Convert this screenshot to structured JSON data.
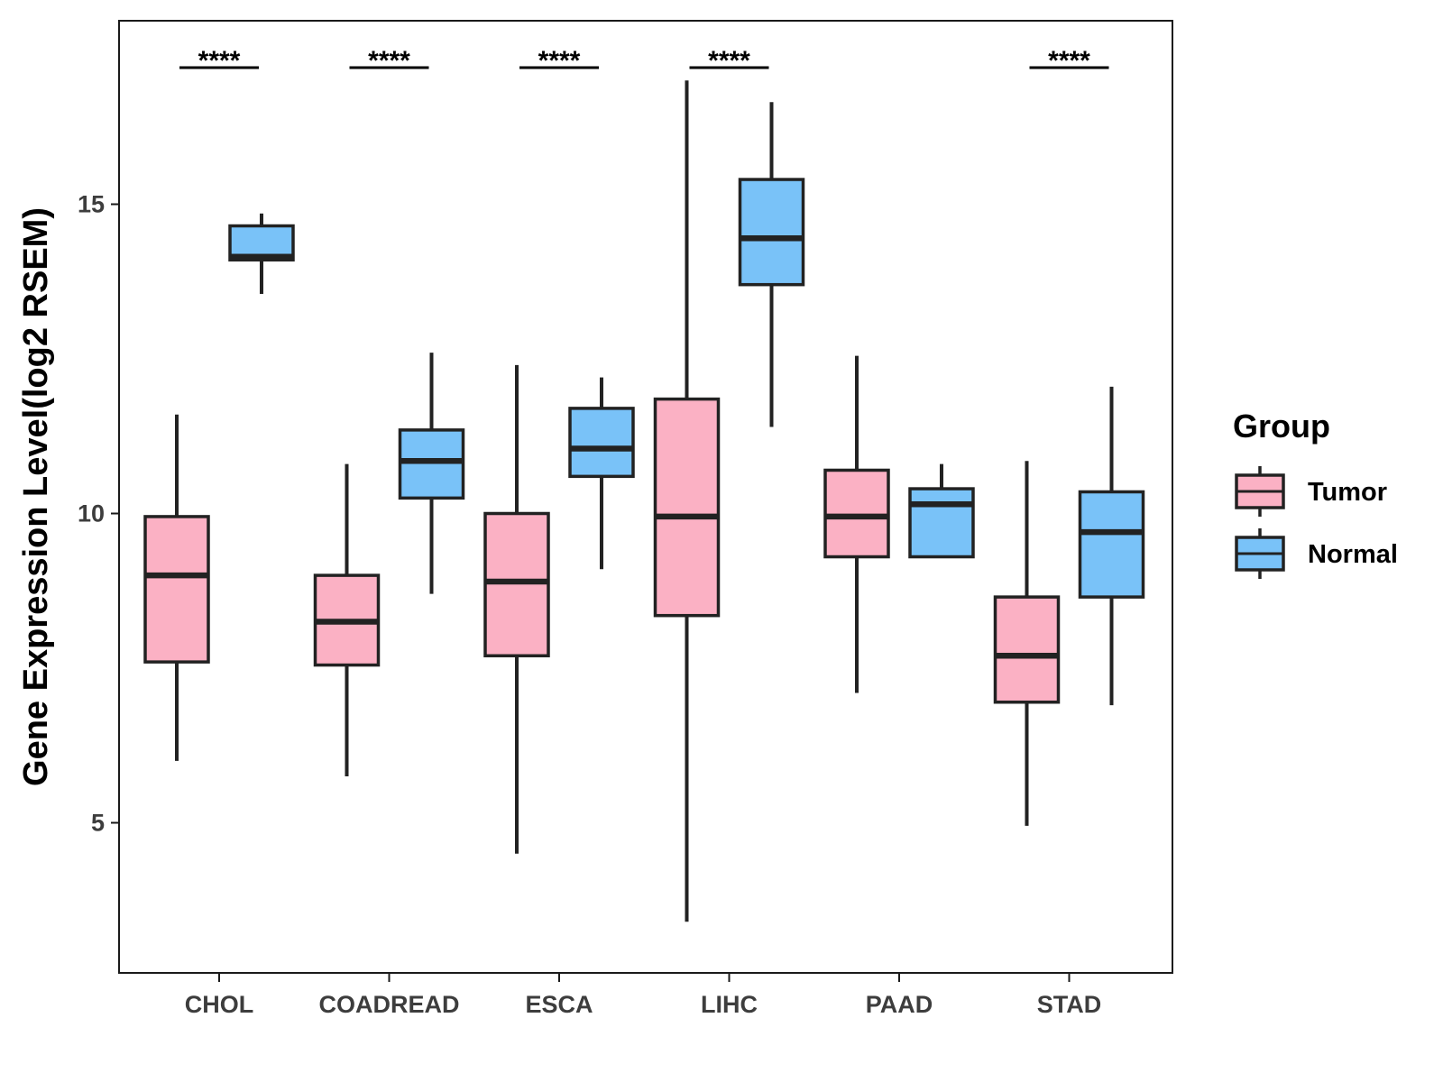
{
  "chart_data": {
    "type": "boxplot",
    "title": "",
    "xlabel": "",
    "ylabel": "Gene Expression Level(log2 RSEM)",
    "ylim": [
      2.7,
      18.1
    ],
    "yticks": [
      5,
      10,
      15
    ],
    "categories": [
      "CHOL",
      "COADREAD",
      "ESCA",
      "LIHC",
      "PAAD",
      "STAD"
    ],
    "legend": {
      "title": "Group",
      "position": "right",
      "entries": [
        {
          "name": "Tumor",
          "color": "#fbb1c4"
        },
        {
          "name": "Normal",
          "color": "#79c2f8"
        }
      ]
    },
    "series": [
      {
        "name": "Tumor",
        "color": "#fbb1c4",
        "boxes": [
          {
            "min": 6.0,
            "q1": 7.6,
            "median": 9.0,
            "q3": 9.95,
            "max": 11.6
          },
          {
            "min": 5.75,
            "q1": 7.55,
            "median": 8.25,
            "q3": 9.0,
            "max": 10.8
          },
          {
            "min": 4.5,
            "q1": 7.7,
            "median": 8.9,
            "q3": 10.0,
            "max": 12.4
          },
          {
            "min": 3.4,
            "q1": 8.35,
            "median": 9.95,
            "q3": 11.85,
            "max": 17.0
          },
          {
            "min": 7.1,
            "q1": 9.3,
            "median": 9.95,
            "q3": 10.7,
            "max": 12.55
          },
          {
            "min": 4.95,
            "q1": 6.95,
            "median": 7.7,
            "q3": 8.65,
            "max": 10.85
          }
        ]
      },
      {
        "name": "Normal",
        "color": "#79c2f8",
        "boxes": [
          {
            "min": 13.55,
            "q1": 14.1,
            "median": 14.15,
            "q3": 14.65,
            "max": 14.85
          },
          {
            "min": 8.7,
            "q1": 10.25,
            "median": 10.85,
            "q3": 11.35,
            "max": 12.6
          },
          {
            "min": 9.1,
            "q1": 10.6,
            "median": 11.05,
            "q3": 11.7,
            "max": 12.2
          },
          {
            "min": 11.4,
            "q1": 13.7,
            "median": 14.45,
            "q3": 15.4,
            "max": 16.65
          },
          {
            "min": 9.3,
            "q1": 9.3,
            "median": 10.15,
            "q3": 10.4,
            "max": 10.8
          },
          {
            "min": 6.9,
            "q1": 8.65,
            "median": 9.7,
            "q3": 10.35,
            "max": 12.05
          }
        ]
      }
    ],
    "significance": [
      {
        "category": "CHOL",
        "label": "****"
      },
      {
        "category": "COADREAD",
        "label": "****"
      },
      {
        "category": "ESCA",
        "label": "****"
      },
      {
        "category": "LIHC",
        "label": "****"
      },
      {
        "category": "STAD",
        "label": "****"
      }
    ]
  }
}
